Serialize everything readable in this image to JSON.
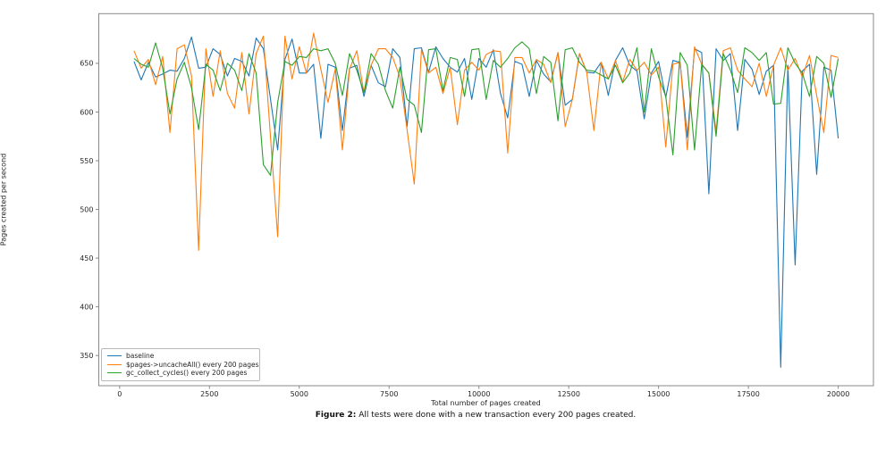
{
  "figure": {
    "caption_label": "Figure 2:",
    "caption_text": " All tests were done with a new transaction every 200 pages created."
  },
  "chart_data": {
    "type": "line",
    "title": "",
    "xlabel": "Total number of pages created",
    "ylabel": "Pages created per second",
    "xlim": [
      -580,
      20980
    ],
    "ylim": [
      319,
      701
    ],
    "xticks": [
      0,
      2500,
      5000,
      7500,
      10000,
      12500,
      15000,
      17500,
      20000
    ],
    "yticks": [
      350,
      400,
      450,
      500,
      550,
      600,
      650
    ],
    "grid": false,
    "legend_position": "lower left",
    "spine_color": "#898989",
    "x": [
      400,
      600,
      800,
      1000,
      1200,
      1400,
      1600,
      1800,
      2000,
      2200,
      2400,
      2600,
      2800,
      3000,
      3200,
      3400,
      3600,
      3800,
      4000,
      4200,
      4400,
      4600,
      4800,
      5000,
      5200,
      5400,
      5600,
      5800,
      6000,
      6200,
      6400,
      6600,
      6800,
      7000,
      7200,
      7400,
      7600,
      7800,
      8000,
      8200,
      8400,
      8600,
      8800,
      9000,
      9200,
      9400,
      9600,
      9800,
      10000,
      10200,
      10400,
      10600,
      10800,
      11000,
      11200,
      11400,
      11600,
      11800,
      12000,
      12200,
      12400,
      12600,
      12800,
      13000,
      13200,
      13400,
      13600,
      13800,
      14000,
      14200,
      14400,
      14600,
      14800,
      15000,
      15200,
      15400,
      15600,
      15800,
      16000,
      16200,
      16400,
      16600,
      16800,
      17000,
      17200,
      17400,
      17600,
      17800,
      18000,
      18200,
      18400,
      18600,
      18800,
      19000,
      19200,
      19400,
      19600,
      19800,
      20000
    ],
    "series": [
      {
        "name": "baseline",
        "color": "#1f77b4",
        "values": [
          652,
          633,
          651,
          636,
          639,
          643,
          642,
          655,
          677,
          645,
          646,
          665,
          659,
          637,
          655,
          652,
          637,
          676,
          665,
          613,
          561,
          654,
          675,
          640,
          640,
          649,
          573,
          649,
          646,
          581,
          645,
          648,
          616,
          648,
          630,
          626,
          665,
          656,
          585,
          665,
          666,
          641,
          667,
          655,
          646,
          641,
          655,
          613,
          655,
          646,
          664,
          619,
          594,
          652,
          649,
          616,
          653,
          639,
          631,
          661,
          607,
          613,
          660,
          641,
          640,
          651,
          617,
          653,
          666,
          648,
          642,
          593,
          640,
          652,
          615,
          653,
          651,
          574,
          665,
          661,
          516,
          665,
          653,
          660,
          581,
          654,
          644,
          618,
          642,
          648,
          338,
          648,
          443,
          642,
          649,
          536,
          646,
          643,
          573
        ]
      },
      {
        "name": "$pages->uncacheAll() every 200 pages",
        "color": "#ff7f0e",
        "values": [
          663,
          645,
          654,
          628,
          657,
          579,
          665,
          669,
          637,
          458,
          665,
          616,
          663,
          619,
          604,
          661,
          598,
          660,
          678,
          574,
          472,
          678,
          634,
          667,
          640,
          681,
          644,
          610,
          644,
          561,
          644,
          663,
          620,
          648,
          665,
          665,
          656,
          636,
          582,
          526,
          664,
          640,
          646,
          619,
          646,
          587,
          643,
          651,
          643,
          659,
          663,
          662,
          558,
          656,
          656,
          640,
          654,
          649,
          630,
          661,
          585,
          613,
          660,
          641,
          581,
          651,
          634,
          653,
          631,
          654,
          643,
          651,
          638,
          646,
          564,
          649,
          651,
          561,
          667,
          649,
          640,
          580,
          663,
          666,
          643,
          634,
          626,
          650,
          616,
          648,
          666,
          643,
          655,
          636,
          658,
          617,
          579,
          658,
          656
        ]
      },
      {
        "name": "gc_collect_cycles() every 200 pages",
        "color": "#2ca02c",
        "values": [
          655,
          649,
          646,
          671,
          645,
          598,
          634,
          651,
          625,
          582,
          649,
          643,
          622,
          650,
          643,
          622,
          660,
          640,
          546,
          535,
          610,
          652,
          648,
          657,
          656,
          665,
          663,
          665,
          650,
          617,
          660,
          643,
          620,
          660,
          649,
          622,
          604,
          646,
          613,
          607,
          579,
          664,
          665,
          622,
          656,
          654,
          616,
          664,
          665,
          613,
          653,
          646,
          655,
          666,
          672,
          665,
          619,
          657,
          651,
          591,
          664,
          666,
          651,
          643,
          642,
          638,
          634,
          648,
          630,
          640,
          666,
          600,
          665,
          636,
          616,
          556,
          661,
          648,
          561,
          649,
          640,
          575,
          660,
          643,
          620,
          666,
          661,
          653,
          661,
          608,
          609,
          666,
          650,
          640,
          616,
          657,
          650,
          615,
          655
        ]
      }
    ]
  }
}
